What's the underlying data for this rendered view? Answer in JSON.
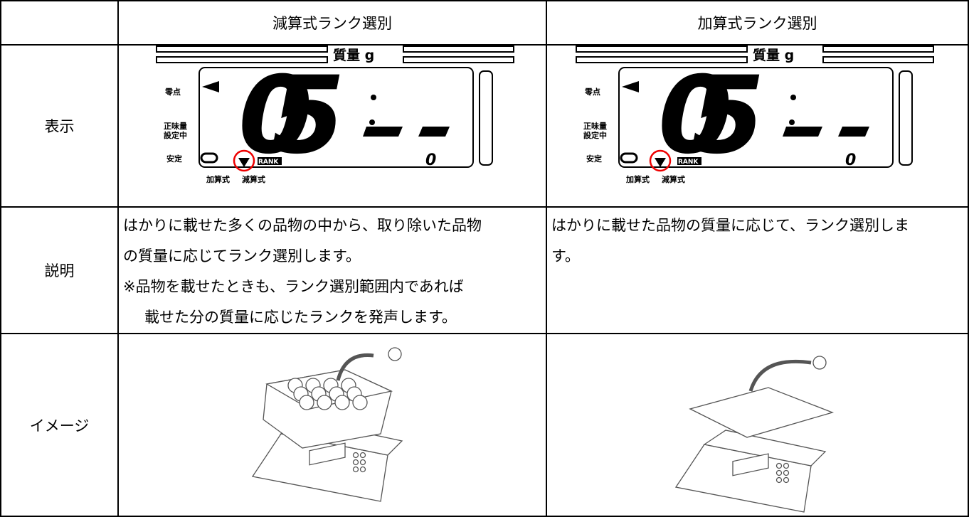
{
  "table": {
    "columns": [
      "減算式ランク選別",
      "加算式ランク選別"
    ],
    "rows": [
      "表示",
      "説明",
      "イメージ"
    ],
    "display": {
      "unit_label": "質量 g",
      "zero": "零点",
      "net": [
        "正味量",
        "設定中"
      ],
      "stable": "安定",
      "add": "加算式",
      "sub": "減算式",
      "rank": "RANK",
      "digits": "05",
      "rank_value": "0"
    },
    "descriptions": [
      [
        "はかりに載せた多くの品物の中から、取り除いた品物",
        "の質量に応じてランク選別します。",
        "※品物を載せたときも、ランク選別範囲内であれば",
        "載せた分の質量に応じたランクを発声します。"
      ],
      [
        "はかりに載せた品物の質量に応じて、ランク選別しま",
        "す。"
      ]
    ]
  }
}
